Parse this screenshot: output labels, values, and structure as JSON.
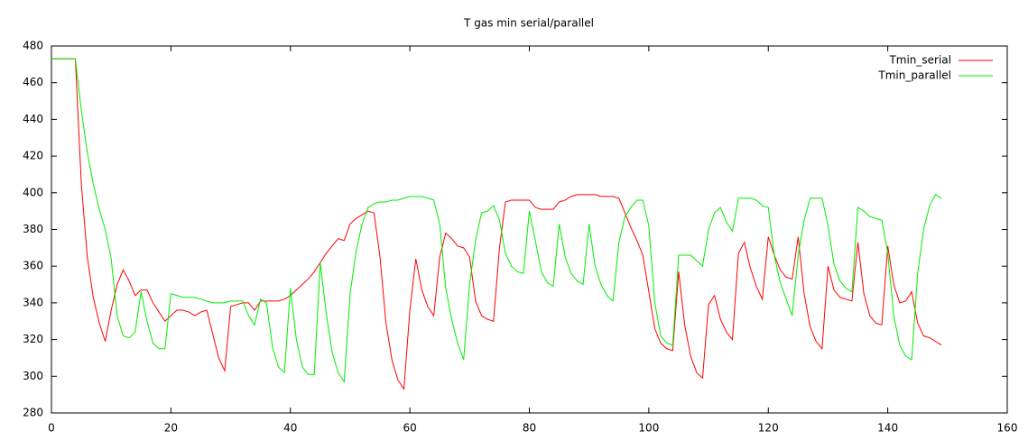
{
  "chart_data": {
    "type": "line",
    "title": "T gas min serial/parallel",
    "x": [
      0,
      1,
      2,
      3,
      4,
      5,
      6,
      7,
      8,
      9,
      10,
      11,
      12,
      13,
      14,
      15,
      16,
      17,
      18,
      19,
      20,
      21,
      22,
      23,
      24,
      25,
      26,
      27,
      28,
      29,
      30,
      31,
      32,
      33,
      34,
      35,
      36,
      37,
      38,
      39,
      40,
      41,
      42,
      43,
      44,
      45,
      46,
      47,
      48,
      49,
      50,
      51,
      52,
      53,
      54,
      55,
      56,
      57,
      58,
      59,
      60,
      61,
      62,
      63,
      64,
      65,
      66,
      67,
      68,
      69,
      70,
      71,
      72,
      73,
      74,
      75,
      76,
      77,
      78,
      79,
      80,
      81,
      82,
      83,
      84,
      85,
      86,
      87,
      88,
      89,
      90,
      91,
      92,
      93,
      94,
      95,
      96,
      97,
      98,
      99,
      100,
      101,
      102,
      103,
      104,
      105,
      106,
      107,
      108,
      109,
      110,
      111,
      112,
      113,
      114,
      115,
      116,
      117,
      118,
      119,
      120,
      121,
      122,
      123,
      124,
      125,
      126,
      127,
      128,
      129,
      130,
      131,
      132,
      133,
      134,
      135,
      136,
      137,
      138,
      139,
      140,
      141,
      142,
      143,
      144,
      145,
      146,
      147,
      148,
      149
    ],
    "series": [
      {
        "name": "Tmin_serial",
        "color": "#ff0000",
        "values": [
          473,
          473,
          473,
          473,
          473,
          405,
          365,
          343,
          329,
          319,
          336,
          350,
          358,
          352,
          344,
          347,
          347,
          340,
          335,
          330,
          333,
          336,
          336,
          335,
          333,
          335,
          336,
          323,
          310,
          303,
          338,
          339,
          340,
          340,
          336,
          341,
          341,
          341,
          341,
          342,
          344,
          347,
          350,
          353,
          357,
          362,
          367,
          371,
          375,
          374,
          383,
          386,
          388,
          390,
          389,
          365,
          329,
          309,
          298,
          293,
          336,
          364,
          347,
          338,
          333,
          365,
          378,
          375,
          371,
          370,
          365,
          341,
          333,
          331,
          330,
          370,
          395,
          396,
          396,
          396,
          396,
          392,
          391,
          391,
          391,
          395,
          396,
          398,
          399,
          399,
          399,
          399,
          398,
          398,
          398,
          397,
          389,
          381,
          374,
          366,
          346,
          326,
          318,
          315,
          314,
          357,
          328,
          311,
          302,
          299,
          339,
          344,
          331,
          324,
          320,
          367,
          373,
          359,
          349,
          342,
          376,
          366,
          358,
          354,
          353,
          376,
          345,
          327,
          319,
          315,
          360,
          347,
          343,
          342,
          341,
          373,
          345,
          333,
          329,
          328,
          371,
          350,
          340,
          341,
          346,
          329,
          322,
          321,
          319,
          317
        ]
      },
      {
        "name": "Tmin_parallel",
        "color": "#00ee00",
        "values": [
          473,
          473,
          473,
          473,
          473,
          445,
          422,
          405,
          391,
          380,
          364,
          333,
          322,
          321,
          324,
          346,
          330,
          318,
          315,
          315,
          345,
          344,
          343,
          343,
          343,
          342,
          341,
          340,
          340,
          340,
          341,
          341,
          341,
          333,
          328,
          342,
          340,
          316,
          305,
          302,
          348,
          320,
          305,
          301,
          301,
          362,
          334,
          313,
          302,
          297,
          345,
          368,
          383,
          392,
          394,
          395,
          395,
          396,
          396,
          397,
          398,
          398,
          398,
          397,
          396,
          383,
          348,
          331,
          318,
          309,
          350,
          374,
          389,
          390,
          393,
          385,
          367,
          360,
          357,
          356,
          390,
          374,
          357,
          351,
          349,
          383,
          365,
          356,
          352,
          350,
          383,
          360,
          350,
          344,
          341,
          373,
          387,
          392,
          396,
          396,
          382,
          340,
          322,
          318,
          317,
          366,
          366,
          366,
          363,
          360,
          380,
          389,
          392,
          384,
          379,
          397,
          397,
          397,
          396,
          393,
          392,
          366,
          351,
          342,
          333,
          366,
          385,
          397,
          397,
          397,
          382,
          361,
          352,
          348,
          346,
          392,
          390,
          387,
          386,
          385,
          367,
          333,
          317,
          311,
          309,
          356,
          380,
          393,
          399,
          397
        ]
      }
    ],
    "xlim": [
      0,
      160
    ],
    "xticks": [
      0,
      20,
      40,
      60,
      80,
      100,
      120,
      140,
      160
    ],
    "ylim": [
      280,
      480
    ],
    "yticks": [
      280,
      300,
      320,
      340,
      360,
      380,
      400,
      420,
      440,
      460,
      480
    ],
    "grid": false,
    "legend": "top-right"
  }
}
